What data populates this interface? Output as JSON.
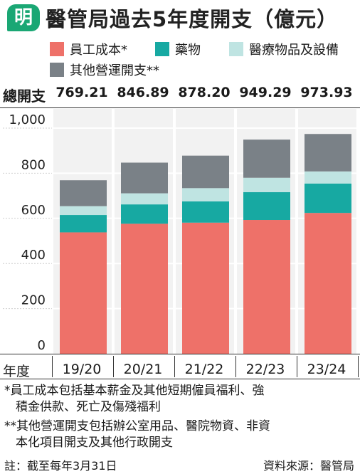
{
  "logo": "明",
  "title": "醫管局過去5年度開支（億元）",
  "legend": [
    {
      "label": "員工成本*",
      "color": "#ee7169"
    },
    {
      "label": "藥物",
      "color": "#17a9a2"
    },
    {
      "label": "醫療物品及設備",
      "color": "#bfe4e2"
    },
    {
      "label": "其他營運開支**",
      "color": "#7a8187"
    }
  ],
  "totals_label": "總開支",
  "totals": [
    "769.21",
    "846.89",
    "878.20",
    "949.29",
    "973.93"
  ],
  "xaxis_title": "年度",
  "chart_data": {
    "type": "bar",
    "stacked": true,
    "categories": [
      "19/20",
      "20/21",
      "21/22",
      "22/23",
      "23/24"
    ],
    "series": [
      {
        "name": "員工成本*",
        "color": "#ee7169",
        "values": [
          538,
          576,
          581,
          593,
          624
        ]
      },
      {
        "name": "藥物",
        "color": "#17a9a2",
        "values": [
          77,
          86,
          94,
          123,
          130
        ]
      },
      {
        "name": "醫療物品及設備",
        "color": "#bfe4e2",
        "values": [
          39,
          49,
          59,
          64,
          54
        ]
      },
      {
        "name": "其他營運開支**",
        "color": "#7a8187",
        "values": [
          115,
          136,
          144,
          169,
          166
        ]
      }
    ],
    "ylim": [
      0,
      1000
    ],
    "yticks": [
      0,
      200,
      400,
      600,
      800,
      1000
    ],
    "ytick_labels": [
      "0",
      "200",
      "400",
      "600",
      "800",
      "1,000"
    ]
  },
  "notes": {
    "note1_line1": "*員工成本包括基本薪金及其他短期僱員福利、強",
    "note1_line2": "積金供款、死亡及傷殘福利",
    "note2_line1": "**其他營運開支包括辦公室用品、醫院物資、非資",
    "note2_line2": "本化項目開支及其他行政開支"
  },
  "footer_left": "註：截至每年3月31日",
  "footer_right": "資料來源：醫管局"
}
